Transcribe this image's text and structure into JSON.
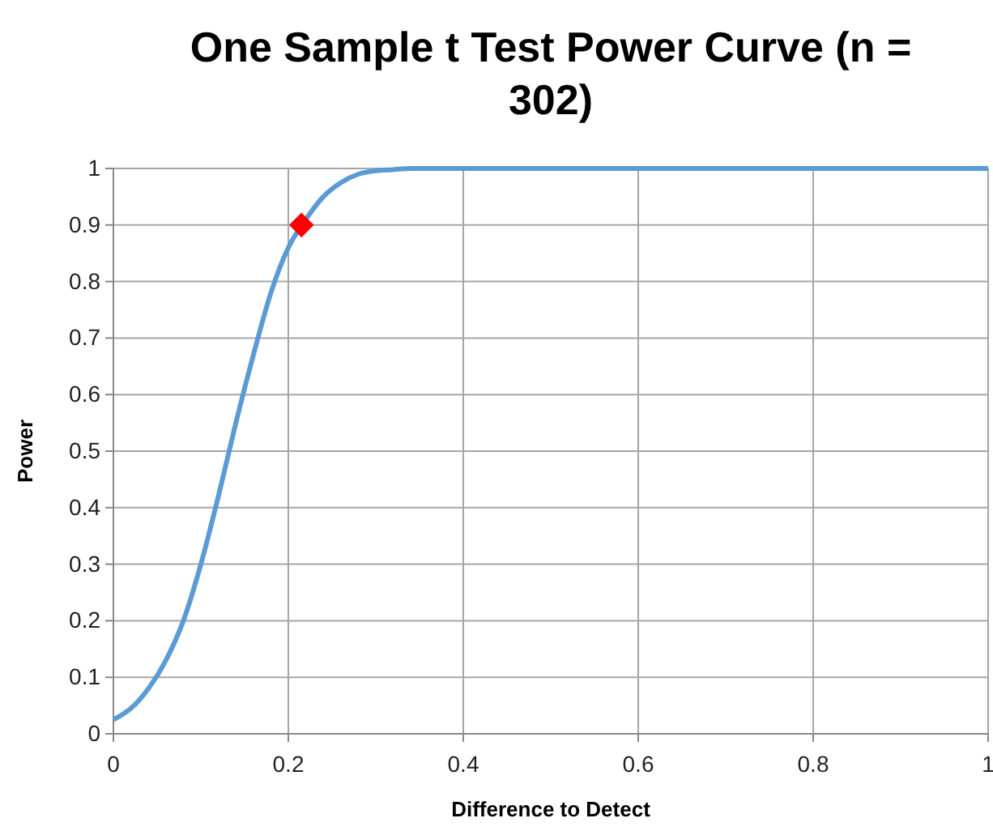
{
  "chart_data": {
    "type": "line",
    "title": "One Sample t Test Power Curve (n = 302)",
    "xlabel": "Difference to Detect",
    "ylabel": "Power",
    "xlim": [
      0,
      1
    ],
    "xticks": [
      0,
      0.2,
      0.4,
      0.6,
      0.8,
      1
    ],
    "ylim": [
      0,
      1
    ],
    "yticks": [
      0,
      0.1,
      0.2,
      0.3,
      0.4,
      0.5,
      0.6,
      0.7,
      0.8,
      0.9,
      1
    ],
    "grid": true,
    "series": [
      {
        "color": "#5b9bd5",
        "marker": "none",
        "x": [
          0,
          0.02,
          0.04,
          0.06,
          0.08,
          0.1,
          0.12,
          0.14,
          0.16,
          0.18,
          0.2,
          0.22,
          0.24,
          0.26,
          0.28,
          0.3,
          0.32,
          0.34,
          0.4,
          0.6,
          0.8,
          1
        ],
        "values": [
          0.025,
          0.045,
          0.08,
          0.13,
          0.2,
          0.3,
          0.42,
          0.55,
          0.67,
          0.78,
          0.86,
          0.91,
          0.95,
          0.975,
          0.99,
          0.996,
          0.998,
          1,
          1,
          1,
          1,
          1
        ]
      },
      {
        "type": "scatter",
        "color": "#ff0000",
        "marker": "diamond",
        "x": [
          0.215
        ],
        "values": [
          0.9
        ]
      }
    ]
  }
}
